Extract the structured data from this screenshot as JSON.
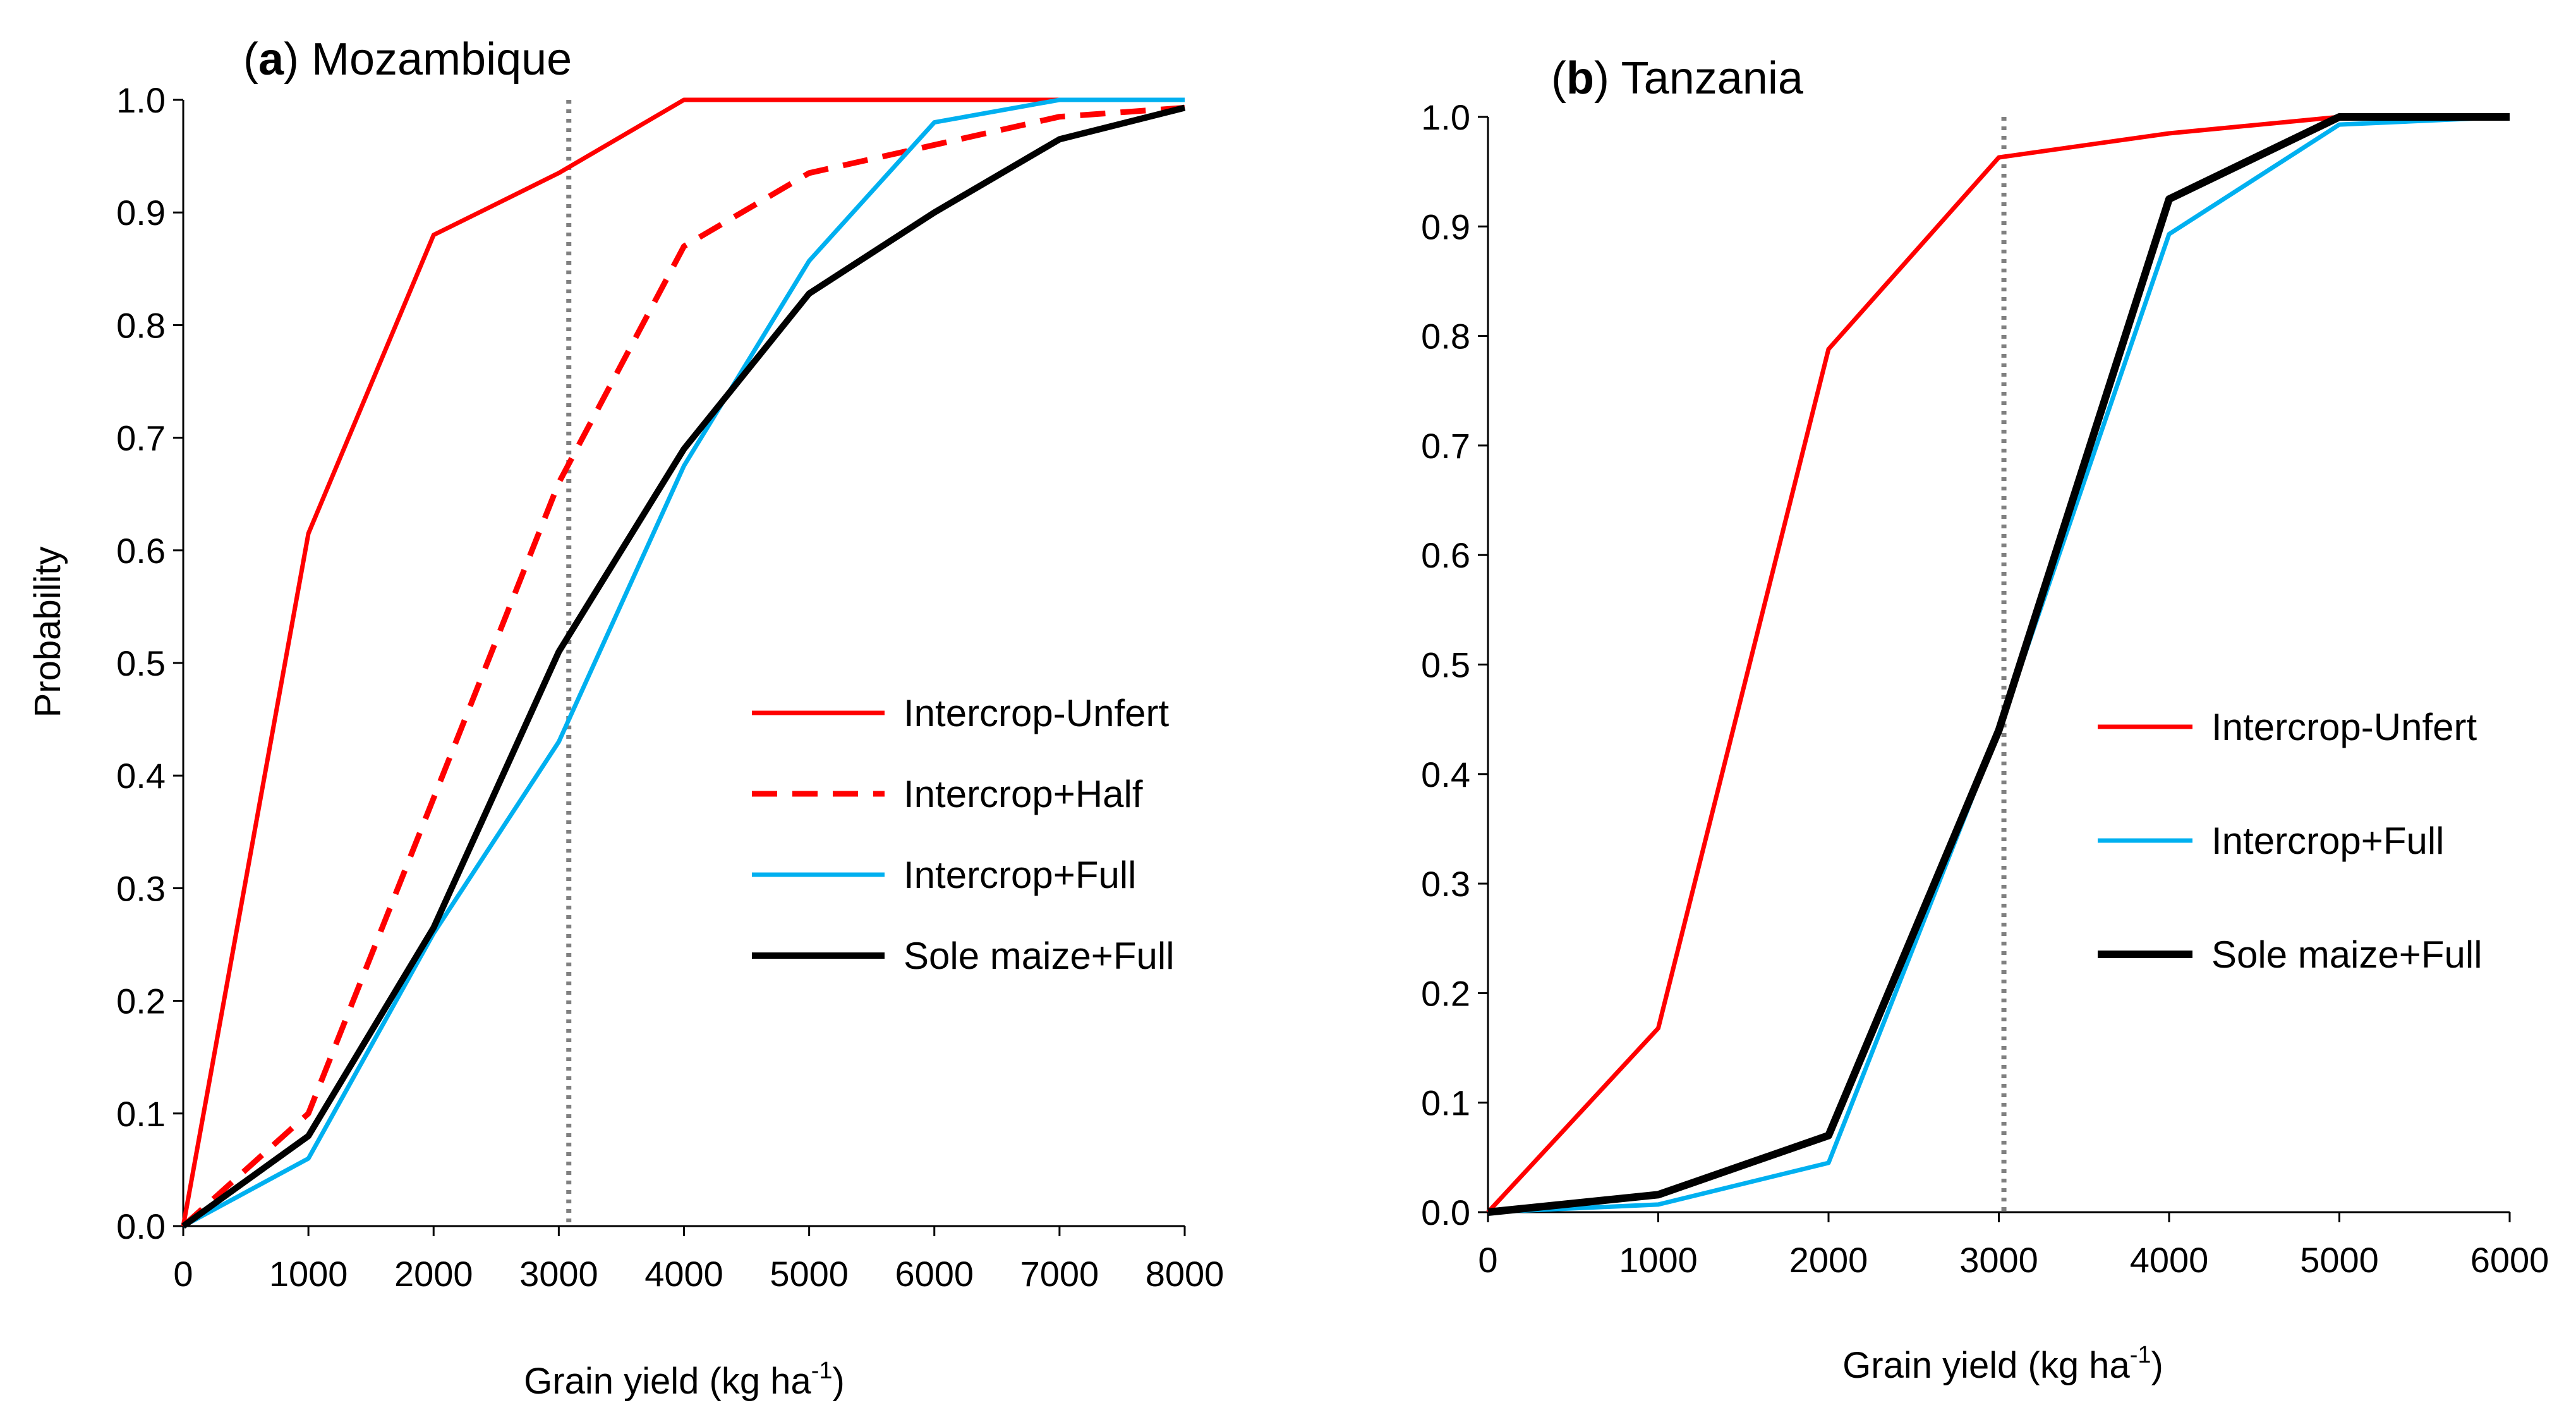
{
  "chart_data": [
    {
      "type": "line",
      "panel_letter": "a",
      "title": "Mozambique",
      "xlabel": "Grain yield (kg ha",
      "xlabel_sup": "-1",
      "xlabel_close": ")",
      "ylabel": "Probability",
      "xlim": [
        0,
        8000
      ],
      "ylim": [
        0,
        1.0
      ],
      "x_ticks": [
        0,
        1000,
        2000,
        3000,
        4000,
        5000,
        6000,
        7000,
        8000
      ],
      "y_ticks": [
        "0.0",
        "0.1",
        "0.2",
        "0.3",
        "0.4",
        "0.5",
        "0.6",
        "0.7",
        "0.8",
        "0.9",
        "1.0"
      ],
      "reference_line_x": 3080,
      "legend_position": "center-right",
      "series": [
        {
          "name": "Intercrop-Unfert",
          "color": "#ff0000",
          "style": "solid",
          "width": 7,
          "x": [
            0,
            1000,
            2000,
            3000,
            4000,
            5000,
            6000,
            7000,
            8000
          ],
          "y": [
            0.0,
            0.615,
            0.88,
            0.935,
            1.0,
            1.0,
            1.0,
            1.0,
            1.0
          ]
        },
        {
          "name": "Intercrop+Half",
          "color": "#ff0000",
          "style": "dashed",
          "width": 9,
          "x": [
            0,
            1000,
            2000,
            3000,
            4000,
            5000,
            6000,
            7000,
            8000
          ],
          "y": [
            0.0,
            0.1,
            0.38,
            0.66,
            0.87,
            0.935,
            0.96,
            0.985,
            0.993
          ]
        },
        {
          "name": "Intercrop+Full",
          "color": "#00b0f0",
          "style": "solid",
          "width": 7,
          "x": [
            0,
            1000,
            2000,
            3000,
            4000,
            5000,
            6000,
            7000,
            8000
          ],
          "y": [
            0.0,
            0.06,
            0.26,
            0.43,
            0.675,
            0.857,
            0.98,
            1.0,
            1.0
          ]
        },
        {
          "name": "Sole maize+Full",
          "color": "#000000",
          "style": "solid",
          "width": 10,
          "x": [
            0,
            1000,
            2000,
            3000,
            4000,
            5000,
            6000,
            7000,
            8000
          ],
          "y": [
            0.0,
            0.08,
            0.265,
            0.51,
            0.69,
            0.828,
            0.9,
            0.965,
            0.993
          ]
        }
      ]
    },
    {
      "type": "line",
      "panel_letter": "b",
      "title": "Tanzania",
      "xlabel": "Grain yield (kg ha",
      "xlabel_sup": "-1",
      "xlabel_close": ")",
      "ylabel": "",
      "xlim": [
        0,
        6000
      ],
      "ylim": [
        0,
        1.0
      ],
      "x_ticks": [
        0,
        1000,
        2000,
        3000,
        4000,
        5000,
        6000
      ],
      "y_ticks": [
        "0.0",
        "0.1",
        "0.2",
        "0.3",
        "0.4",
        "0.5",
        "0.6",
        "0.7",
        "0.8",
        "0.9",
        "1.0"
      ],
      "reference_line_x": 3030,
      "legend_position": "center-right",
      "series": [
        {
          "name": "Intercrop-Unfert",
          "color": "#ff0000",
          "style": "solid",
          "width": 7,
          "x": [
            0,
            1000,
            2000,
            3000,
            4000,
            5000,
            6000
          ],
          "y": [
            0.0,
            0.168,
            0.788,
            0.963,
            0.985,
            1.0,
            1.0
          ]
        },
        {
          "name": "Intercrop+Full",
          "color": "#00b0f0",
          "style": "solid",
          "width": 7,
          "x": [
            0,
            1000,
            2000,
            3000,
            4000,
            5000,
            6000
          ],
          "y": [
            0.0,
            0.007,
            0.045,
            0.44,
            0.893,
            0.993,
            1.0
          ]
        },
        {
          "name": "Sole maize+Full",
          "color": "#000000",
          "style": "solid",
          "width": 12,
          "x": [
            0,
            1000,
            2000,
            3000,
            4000,
            5000,
            6000
          ],
          "y": [
            0.0,
            0.016,
            0.07,
            0.44,
            0.925,
            1.0,
            1.0
          ]
        }
      ]
    }
  ]
}
